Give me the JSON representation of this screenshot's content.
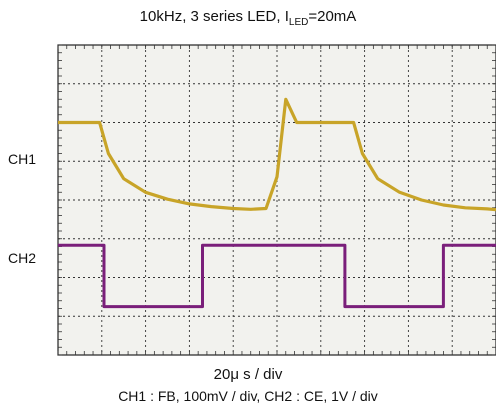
{
  "title": {
    "prefix": "10kHz, 3 series LED, I",
    "sub": "LED",
    "suffix": "=20mA"
  },
  "channels": [
    {
      "label": "CH1"
    },
    {
      "label": "CH2"
    }
  ],
  "xlabel": "20μ s / div",
  "caption": "CH1 : FB, 100mV / div,    CH2 : CE, 1V / div",
  "colors": {
    "ch1": "#c8a428",
    "ch2": "#7a1f7a",
    "grid": "#333333",
    "screen": "#f2f2ee"
  },
  "chart_data": {
    "type": "line",
    "title": "10kHz, 3 series LED, ILED=20mA",
    "xlabel": "20μ s / div",
    "grid": true,
    "divisions": {
      "x": 10,
      "y": 8
    },
    "series": [
      {
        "name": "CH1",
        "values_div": [
          [
            0.0,
            6.0
          ],
          [
            0.95,
            6.0
          ],
          [
            1.15,
            5.2
          ],
          [
            1.5,
            4.55
          ],
          [
            2.0,
            4.2
          ],
          [
            2.5,
            4.02
          ],
          [
            3.0,
            3.9
          ],
          [
            3.5,
            3.83
          ],
          [
            4.0,
            3.78
          ],
          [
            4.4,
            3.76
          ],
          [
            4.75,
            3.78
          ],
          [
            5.0,
            4.6
          ],
          [
            5.2,
            6.6
          ],
          [
            5.45,
            6.0
          ],
          [
            6.0,
            6.0
          ],
          [
            6.75,
            6.0
          ],
          [
            6.95,
            5.2
          ],
          [
            7.3,
            4.55
          ],
          [
            7.8,
            4.2
          ],
          [
            8.3,
            4.0
          ],
          [
            8.8,
            3.87
          ],
          [
            9.3,
            3.8
          ],
          [
            9.8,
            3.77
          ],
          [
            10.0,
            3.75
          ]
        ]
      },
      {
        "name": "CH2",
        "values_div": [
          [
            0.0,
            2.83
          ],
          [
            1.05,
            2.83
          ],
          [
            1.05,
            1.25
          ],
          [
            3.3,
            1.25
          ],
          [
            3.3,
            2.83
          ],
          [
            6.55,
            2.83
          ],
          [
            6.55,
            1.25
          ],
          [
            8.8,
            1.25
          ],
          [
            8.8,
            2.83
          ],
          [
            10.0,
            2.83
          ]
        ]
      }
    ]
  }
}
